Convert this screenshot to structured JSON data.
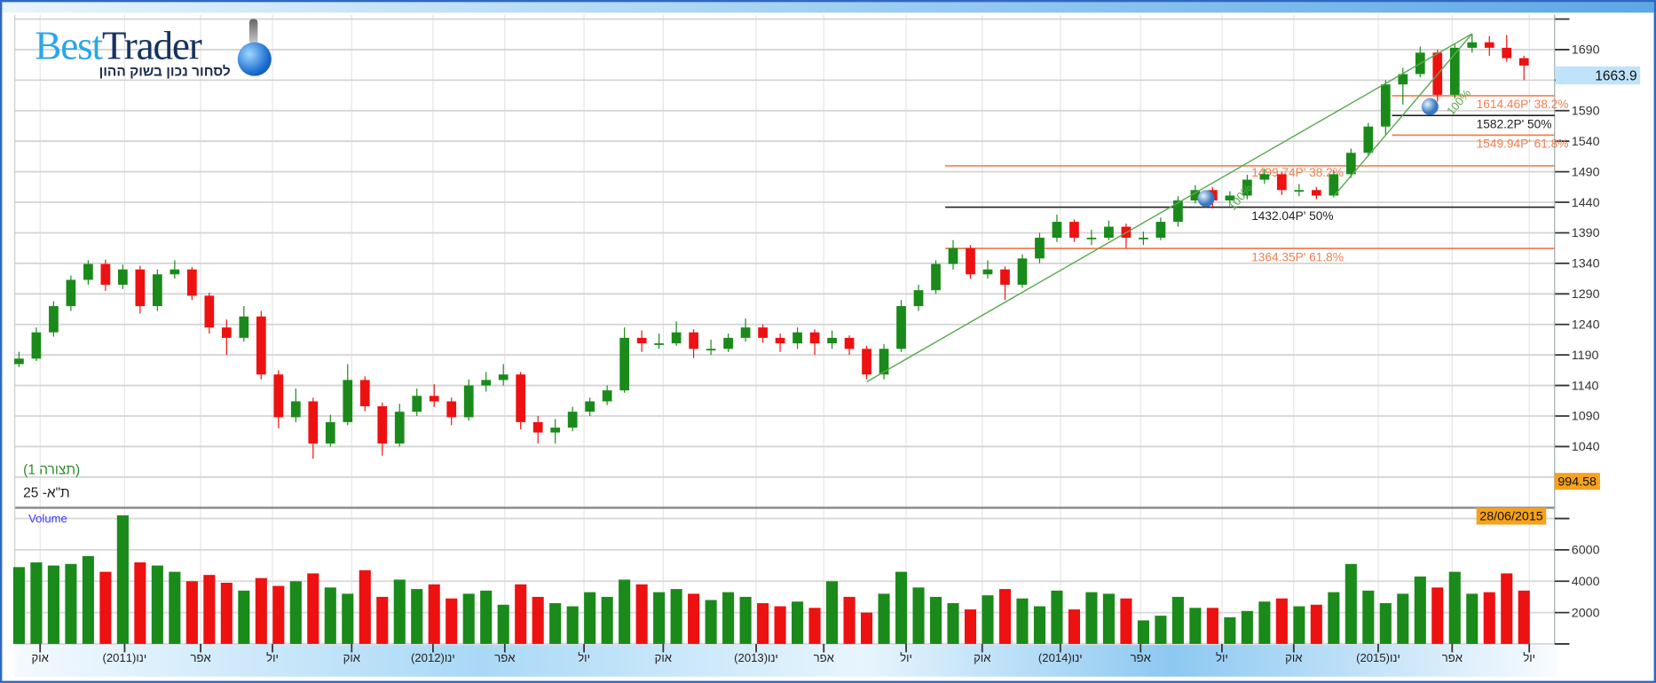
{
  "logo": {
    "best": "Best",
    "trader": "Trader",
    "tagline": "לסחור נכון בשוק ההון"
  },
  "legend": {
    "layout": "(תצורה 1)",
    "instrument": "ת\"א- 25"
  },
  "volume_label": "Volume",
  "badges": {
    "last_price": "1663.9",
    "range_low": "994.58",
    "cursor_date": "28/06/2015"
  },
  "colors": {
    "up": "#1a8a1a",
    "down": "#ee1111",
    "fib": "#f08050",
    "trend": "#5aaa50",
    "frame": "#2e68c0"
  },
  "chart_data": [
    {
      "type": "candlestick",
      "title": "",
      "price_axis": {
        "ticks": [
          1040,
          1090,
          1140,
          1190,
          1240,
          1290,
          1340,
          1390,
          1440,
          1490,
          1540,
          1590,
          1640,
          1690
        ],
        "range": [
          990,
          1740
        ],
        "side": "right"
      },
      "x_tick_labels": [
        "אוק",
        "ינו(2011)",
        "אפר",
        "יול",
        "אוק",
        "ינו(2012)",
        "אפר",
        "יול",
        "אוק",
        "ינו(2013)",
        "אפר",
        "יול",
        "אוק",
        "ינו(2014)",
        "אפר",
        "יול",
        "אוק",
        "ינו(2015)",
        "אפר",
        "יול"
      ],
      "grid": true,
      "candles": [
        [
          1175,
          1195,
          1170,
          1184
        ],
        [
          1184,
          1235,
          1180,
          1227
        ],
        [
          1227,
          1278,
          1220,
          1270
        ],
        [
          1270,
          1320,
          1262,
          1313
        ],
        [
          1313,
          1345,
          1305,
          1339
        ],
        [
          1339,
          1346,
          1295,
          1305
        ],
        [
          1305,
          1338,
          1298,
          1330
        ],
        [
          1330,
          1336,
          1258,
          1270
        ],
        [
          1270,
          1330,
          1262,
          1322
        ],
        [
          1322,
          1345,
          1315,
          1330
        ],
        [
          1330,
          1334,
          1280,
          1287
        ],
        [
          1287,
          1292,
          1225,
          1235
        ],
        [
          1235,
          1248,
          1190,
          1218
        ],
        [
          1218,
          1270,
          1212,
          1253
        ],
        [
          1253,
          1262,
          1150,
          1158
        ],
        [
          1158,
          1165,
          1070,
          1088
        ],
        [
          1088,
          1135,
          1080,
          1114
        ],
        [
          1114,
          1120,
          1020,
          1045
        ],
        [
          1045,
          1092,
          1040,
          1080
        ],
        [
          1080,
          1175,
          1075,
          1149
        ],
        [
          1149,
          1155,
          1098,
          1106
        ],
        [
          1106,
          1112,
          1025,
          1045
        ],
        [
          1045,
          1110,
          1040,
          1097
        ],
        [
          1097,
          1135,
          1090,
          1123
        ],
        [
          1123,
          1142,
          1105,
          1114
        ],
        [
          1114,
          1120,
          1075,
          1088
        ],
        [
          1088,
          1150,
          1082,
          1140
        ],
        [
          1140,
          1162,
          1130,
          1149
        ],
        [
          1149,
          1175,
          1140,
          1158
        ],
        [
          1158,
          1162,
          1068,
          1080
        ],
        [
          1080,
          1090,
          1045,
          1063
        ],
        [
          1063,
          1085,
          1045,
          1071
        ],
        [
          1071,
          1105,
          1065,
          1097
        ],
        [
          1097,
          1120,
          1090,
          1114
        ],
        [
          1114,
          1140,
          1108,
          1132
        ],
        [
          1132,
          1235,
          1128,
          1218
        ],
        [
          1218,
          1230,
          1195,
          1209
        ],
        [
          1209,
          1225,
          1200,
          1209
        ],
        [
          1209,
          1245,
          1205,
          1227
        ],
        [
          1227,
          1232,
          1185,
          1200
        ],
        [
          1200,
          1215,
          1190,
          1200
        ],
        [
          1200,
          1225,
          1195,
          1218
        ],
        [
          1218,
          1250,
          1212,
          1235
        ],
        [
          1235,
          1240,
          1210,
          1218
        ],
        [
          1218,
          1225,
          1195,
          1209
        ],
        [
          1209,
          1235,
          1200,
          1227
        ],
        [
          1227,
          1232,
          1190,
          1209
        ],
        [
          1209,
          1230,
          1200,
          1218
        ],
        [
          1218,
          1222,
          1190,
          1200
        ],
        [
          1200,
          1205,
          1150,
          1158
        ],
        [
          1158,
          1208,
          1150,
          1200
        ],
        [
          1200,
          1280,
          1195,
          1270
        ],
        [
          1270,
          1305,
          1262,
          1296
        ],
        [
          1296,
          1345,
          1290,
          1339
        ],
        [
          1339,
          1378,
          1330,
          1365
        ],
        [
          1365,
          1370,
          1315,
          1322
        ],
        [
          1322,
          1345,
          1315,
          1330
        ],
        [
          1330,
          1335,
          1280,
          1305
        ],
        [
          1305,
          1355,
          1300,
          1348
        ],
        [
          1348,
          1390,
          1340,
          1382
        ],
        [
          1382,
          1420,
          1375,
          1408
        ],
        [
          1408,
          1412,
          1375,
          1382
        ],
        [
          1382,
          1395,
          1370,
          1382
        ],
        [
          1382,
          1410,
          1378,
          1400
        ],
        [
          1400,
          1405,
          1365,
          1382
        ],
        [
          1382,
          1392,
          1370,
          1382
        ],
        [
          1382,
          1415,
          1378,
          1408
        ],
        [
          1408,
          1450,
          1400,
          1443
        ],
        [
          1443,
          1468,
          1438,
          1460
        ],
        [
          1460,
          1465,
          1430,
          1443
        ],
        [
          1443,
          1458,
          1438,
          1451
        ],
        [
          1451,
          1485,
          1445,
          1477
        ],
        [
          1477,
          1495,
          1470,
          1486
        ],
        [
          1486,
          1490,
          1452,
          1460
        ],
        [
          1460,
          1470,
          1450,
          1460
        ],
        [
          1460,
          1465,
          1445,
          1451
        ],
        [
          1451,
          1492,
          1448,
          1486
        ],
        [
          1486,
          1528,
          1480,
          1521
        ],
        [
          1521,
          1570,
          1515,
          1564
        ],
        [
          1564,
          1640,
          1550,
          1633
        ],
        [
          1633,
          1660,
          1600,
          1650
        ],
        [
          1650,
          1695,
          1645,
          1685
        ],
        [
          1685,
          1690,
          1605,
          1616
        ],
        [
          1616,
          1700,
          1610,
          1693
        ],
        [
          1693,
          1716,
          1685,
          1702
        ],
        [
          1702,
          1712,
          1680,
          1693
        ],
        [
          1693,
          1714,
          1670,
          1676
        ],
        [
          1676,
          1680,
          1640,
          1663.9
        ]
      ],
      "fib_levels": [
        {
          "group": "long",
          "value": 1499.74,
          "label": "1499.74P'  38.2%",
          "color": "#f08050"
        },
        {
          "group": "long",
          "value": 1432.04,
          "label": "1432.04P'  50%",
          "color": "#222222"
        },
        {
          "group": "long",
          "value": 1364.35,
          "label": "1364.35P'  61.8%",
          "color": "#f08050"
        },
        {
          "group": "short",
          "value": 1614.46,
          "label": "1614.46P'  38.2%",
          "color": "#f08050"
        },
        {
          "group": "short",
          "value": 1582.2,
          "label": "1582.2P'  50%",
          "color": "#222222"
        },
        {
          "group": "short",
          "value": 1549.94,
          "label": "1549.94P'  61.8%",
          "color": "#f08050"
        }
      ],
      "trend_lines": [
        {
          "from_candle": 49,
          "from_value": 1146,
          "to_candle": 84,
          "to_value": 1716,
          "label": "100%"
        },
        {
          "from_candle": 76,
          "from_value": 1450,
          "to_candle": 84,
          "to_value": 1716,
          "label": "100%"
        }
      ]
    },
    {
      "type": "bar",
      "title": "Volume",
      "y_ticks": [
        2000,
        4000,
        6000
      ],
      "ylim": [
        0,
        8000
      ],
      "values": [
        4900,
        5200,
        5000,
        5100,
        5600,
        4600,
        8200,
        5200,
        5000,
        4600,
        4000,
        4400,
        3900,
        3400,
        4200,
        3700,
        4000,
        4500,
        3600,
        3200,
        4700,
        3000,
        4100,
        3500,
        3800,
        2900,
        3200,
        3400,
        2500,
        3800,
        3000,
        2600,
        2400,
        3300,
        3000,
        4100,
        3800,
        3300,
        3500,
        3200,
        2800,
        3300,
        3000,
        2600,
        2400,
        2700,
        2300,
        4000,
        3000,
        2000,
        3200,
        4600,
        3600,
        3000,
        2600,
        2200,
        3100,
        3500,
        2900,
        2400,
        3400,
        2200,
        3300,
        3200,
        2900,
        1500,
        1800,
        3000,
        2300,
        2300,
        1700,
        2100,
        2700,
        2900,
        2400,
        2500,
        3300,
        5100,
        3400,
        2600,
        3200,
        4300,
        3600,
        4600,
        3200,
        3300,
        4500,
        3400
      ]
    }
  ]
}
